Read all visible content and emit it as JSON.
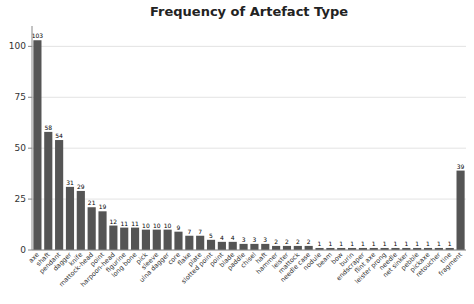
{
  "chart_data": {
    "type": "bar",
    "title": "Frequency of Artefact Type",
    "categories": [
      "axe",
      "shaft",
      "pendant",
      "dagger",
      "knife",
      "mattock-head",
      "point",
      "harpoon-head",
      "figurine",
      "long bone",
      "pick",
      "sleeve",
      "ulna dagger",
      "core",
      "flake",
      "plate",
      "slotted point",
      "point",
      "blade",
      "paddle",
      "chisel",
      "haft",
      "hammer",
      "leister",
      "mattock",
      "needle case",
      "nodule",
      "beam",
      "bow",
      "burin",
      "endscraper",
      "flint axe",
      "leister prong",
      "needle",
      "net sinker",
      "pebble",
      "pickaxe",
      "retoucher",
      "tine",
      "fragment"
    ],
    "values": [
      103,
      58,
      54,
      31,
      29,
      21,
      19,
      12,
      11,
      11,
      10,
      10,
      10,
      9,
      7,
      7,
      5,
      4,
      4,
      3,
      3,
      3,
      2,
      2,
      2,
      2,
      1,
      1,
      1,
      1,
      1,
      1,
      1,
      1,
      1,
      1,
      1,
      1,
      1,
      39
    ],
    "color": "#555555",
    "ylim": [
      0,
      110
    ],
    "yticks": [
      0,
      25,
      50,
      75,
      100
    ],
    "grid": true,
    "data_labels": true
  }
}
